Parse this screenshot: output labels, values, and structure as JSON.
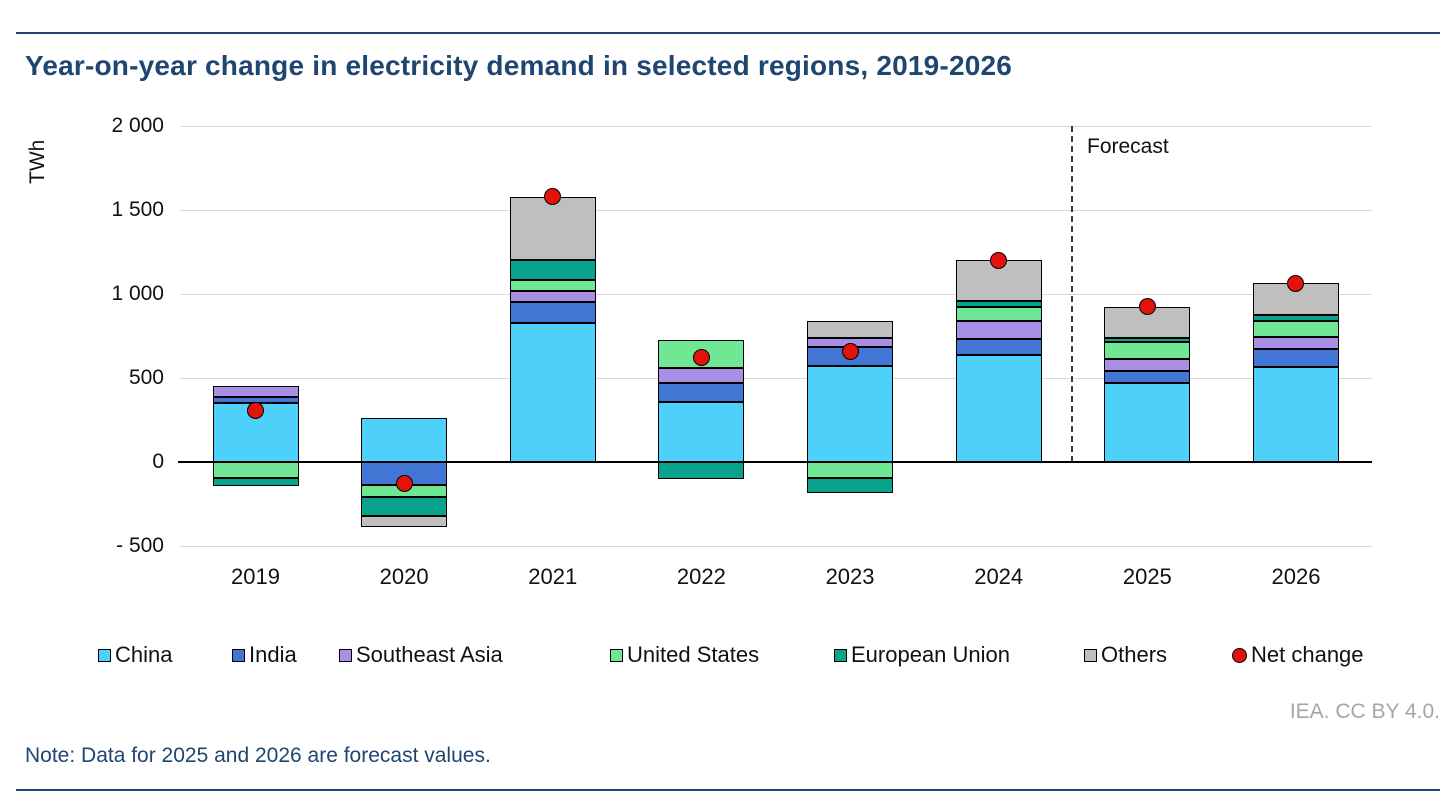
{
  "page": {
    "title": "Year-on-year change in electricity demand in selected regions, 2019-2026",
    "forecast_label": "Forecast",
    "note": "Note: Data for 2025 and 2026 are forecast values.",
    "attribution": "IEA. CC BY 4.0."
  },
  "y_axis": {
    "unit": "TWh"
  },
  "legend": {
    "items": [
      {
        "label": "China",
        "color": "#4DD0FA",
        "shape": "square"
      },
      {
        "label": "India",
        "color": "#4176D5",
        "shape": "square"
      },
      {
        "label": "Southeast Asia",
        "color": "#A98FE3",
        "shape": "square"
      },
      {
        "label": "United States",
        "color": "#6FE795",
        "shape": "square"
      },
      {
        "label": "European Union",
        "color": "#09A38B",
        "shape": "square"
      },
      {
        "label": "Others",
        "color": "#BFBFBF",
        "shape": "square"
      },
      {
        "label": "Net change",
        "color": "#E3120B",
        "shape": "circle"
      }
    ]
  },
  "colors": {
    "navy": "#1F4571",
    "grid": "#D9D9D9",
    "axis": "#000000",
    "attribution_gray": "#A6A6A6",
    "net_change_red": "#E3120B"
  },
  "chart_data": {
    "type": "bar",
    "stacked": true,
    "title": "Year-on-year change in electricity demand in selected regions, 2019-2026",
    "ylabel": "TWh",
    "ylim": [
      -500,
      2000
    ],
    "grid": true,
    "legend_position": "bottom",
    "forecast_divider_after": "2024",
    "yticks": [
      {
        "value": 2000,
        "label": "2 000"
      },
      {
        "value": 1500,
        "label": "1 500"
      },
      {
        "value": 1000,
        "label": "1 000"
      },
      {
        "value": 500,
        "label": "500"
      },
      {
        "value": 0,
        "label": "0"
      },
      {
        "value": -500,
        "label": "- 500"
      }
    ],
    "categories": [
      "2019",
      "2020",
      "2021",
      "2022",
      "2023",
      "2024",
      "2025",
      "2026"
    ],
    "series": [
      {
        "name": "China",
        "color": "#4DD0FA",
        "values": [
          350,
          260,
          825,
          355,
          570,
          635,
          470,
          565
        ]
      },
      {
        "name": "India",
        "color": "#4176D5",
        "values": [
          35,
          -135,
          130,
          115,
          115,
          100,
          70,
          110
        ]
      },
      {
        "name": "Southeast Asia",
        "color": "#A98FE3",
        "values": [
          65,
          0,
          60,
          90,
          55,
          105,
          75,
          70
        ]
      },
      {
        "name": "United States",
        "color": "#6FE795",
        "values": [
          -95,
          -75,
          70,
          165,
          -95,
          85,
          100,
          95
        ]
      },
      {
        "name": "European Union",
        "color": "#09A38B",
        "values": [
          -50,
          -110,
          120,
          -100,
          -90,
          35,
          25,
          35
        ]
      },
      {
        "name": "Others",
        "color": "#BFBFBF",
        "values": [
          0,
          -65,
          375,
          0,
          100,
          240,
          185,
          190
        ]
      }
    ],
    "net_change": {
      "name": "Net change",
      "color": "#E3120B",
      "values": [
        305,
        -125,
        1580,
        625,
        655,
        1200,
        925,
        1065
      ]
    }
  }
}
